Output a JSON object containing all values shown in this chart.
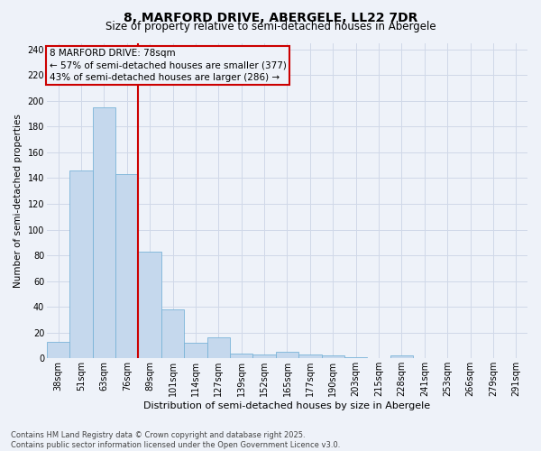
{
  "title1": "8, MARFORD DRIVE, ABERGELE, LL22 7DR",
  "title2": "Size of property relative to semi-detached houses in Abergele",
  "xlabel": "Distribution of semi-detached houses by size in Abergele",
  "ylabel": "Number of semi-detached properties",
  "categories": [
    "38sqm",
    "51sqm",
    "63sqm",
    "76sqm",
    "89sqm",
    "101sqm",
    "114sqm",
    "127sqm",
    "139sqm",
    "152sqm",
    "165sqm",
    "177sqm",
    "190sqm",
    "203sqm",
    "215sqm",
    "228sqm",
    "241sqm",
    "253sqm",
    "266sqm",
    "279sqm",
    "291sqm"
  ],
  "values": [
    13,
    146,
    195,
    143,
    83,
    38,
    12,
    16,
    4,
    3,
    5,
    3,
    2,
    1,
    0,
    2,
    0,
    0,
    0,
    0,
    0
  ],
  "bar_color": "#c5d8ed",
  "bar_edge_color": "#7ab4d8",
  "vline_x": 3.5,
  "vline_color": "#cc0000",
  "vline_label": "8 MARFORD DRIVE: 78sqm",
  "pct_smaller": 57,
  "pct_smaller_n": 377,
  "pct_larger": 43,
  "pct_larger_n": 286,
  "ylim": [
    0,
    245
  ],
  "yticks": [
    0,
    20,
    40,
    60,
    80,
    100,
    120,
    140,
    160,
    180,
    200,
    220,
    240
  ],
  "grid_color": "#d0d8e8",
  "background_color": "#eef2f9",
  "footnote": "Contains HM Land Registry data © Crown copyright and database right 2025.\nContains public sector information licensed under the Open Government Licence v3.0.",
  "annotation_box_color": "#cc0000",
  "title1_fontsize": 10,
  "title2_fontsize": 8.5,
  "xlabel_fontsize": 8,
  "ylabel_fontsize": 7.5,
  "tick_fontsize": 7,
  "footnote_fontsize": 6,
  "annotation_fontsize": 7.5
}
